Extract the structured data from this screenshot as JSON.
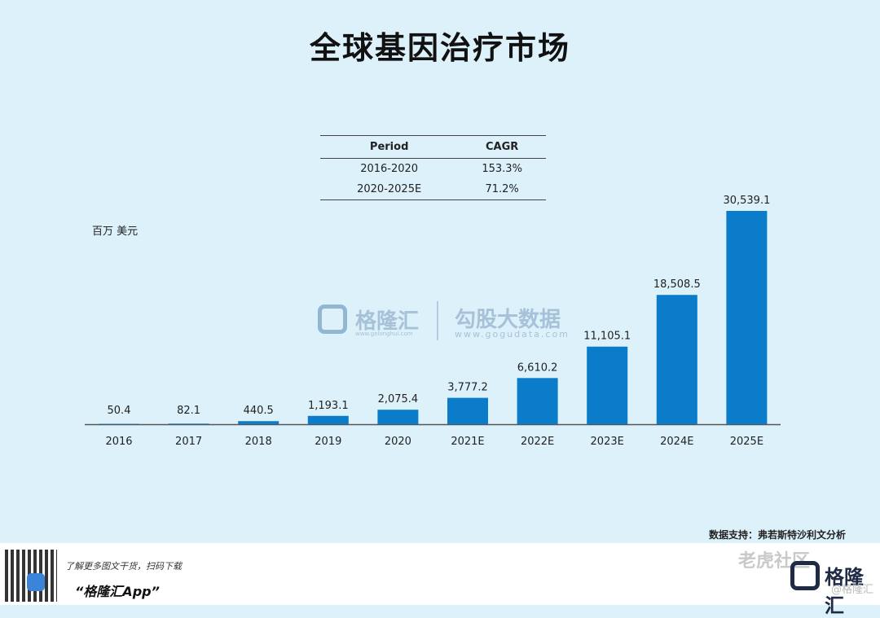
{
  "page": {
    "title": "全球基因治疗市场",
    "unit": "百万 美元",
    "source": "数据支持：弗若斯特沙利文分析"
  },
  "cagr_table": {
    "headers": [
      "Period",
      "CAGR"
    ],
    "rows": [
      {
        "period": "2016-2020",
        "cagr": "153.3%"
      },
      {
        "period": "2020-2025E",
        "cagr": "71.2%"
      }
    ]
  },
  "watermark": {
    "brand": "格隆汇",
    "brand_url": "www.gelonghui.com",
    "partner": "勾股大数据",
    "partner_url": "www.gogudata.com"
  },
  "footer": {
    "promo": "了解更多图文干货，扫码下载",
    "app_name": "“格隆汇App”",
    "community": "老虎社区",
    "brand": "格隆汇",
    "handle": "@格隆汇"
  },
  "colors": {
    "background": "#dcf1fa",
    "bar": "#0a7cc9",
    "axis": "#555555"
  },
  "chart_data": {
    "type": "bar",
    "categories": [
      "2016",
      "2017",
      "2018",
      "2019",
      "2020",
      "2021E",
      "2022E",
      "2023E",
      "2024E",
      "2025E"
    ],
    "values": [
      50.4,
      82.1,
      440.5,
      1193.1,
      2075.4,
      3777.2,
      6610.2,
      11105.1,
      18508.5,
      30539.1
    ],
    "value_labels": [
      "50.4",
      "82.1",
      "440.5",
      "1,193.1",
      "2,075.4",
      "3,777.2",
      "6,610.2",
      "11,105.1",
      "18,508.5",
      "30,539.1"
    ],
    "ylabel": "百万 美元",
    "ylim": [
      0,
      30539.1
    ],
    "grid": false,
    "legend": "none"
  }
}
